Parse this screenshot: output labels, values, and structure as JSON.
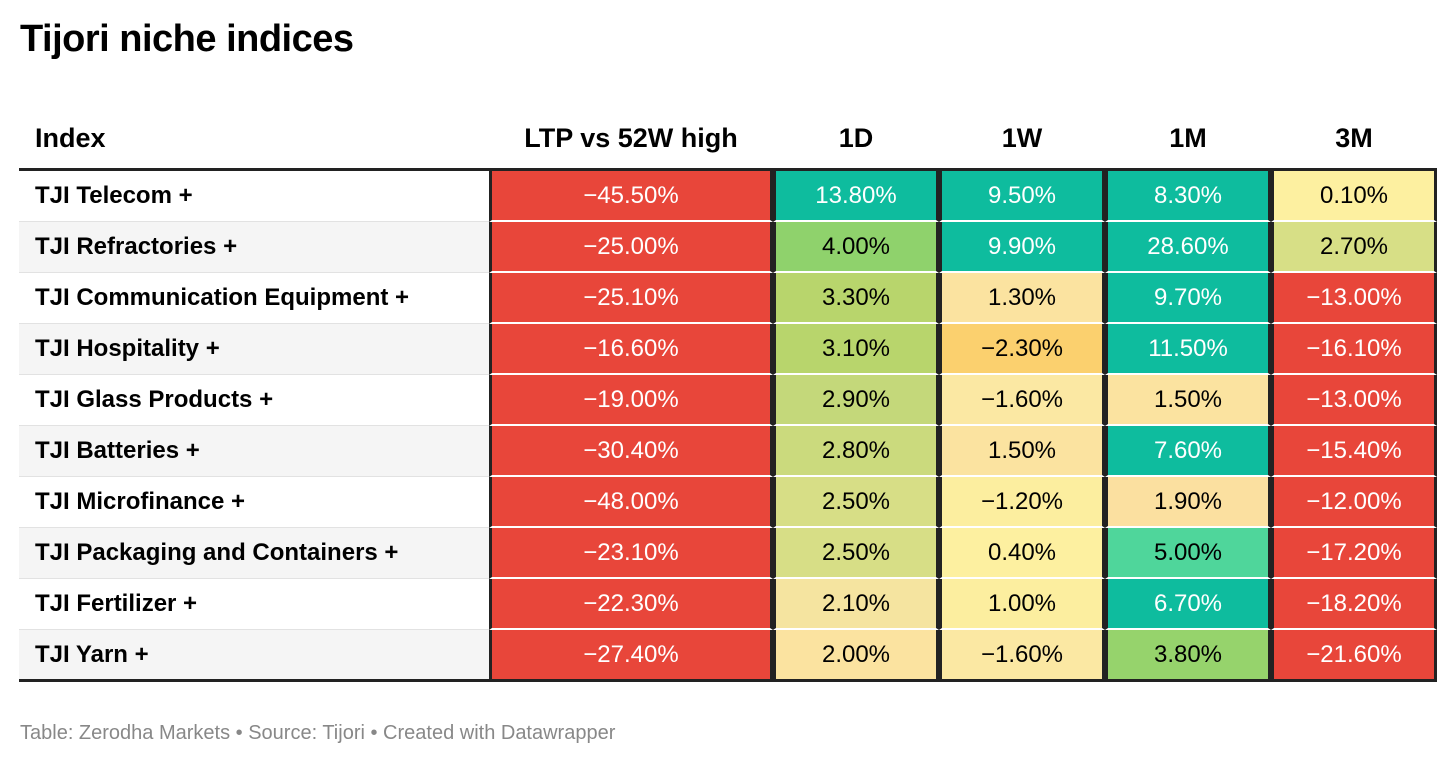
{
  "title": "Tijori niche indices",
  "footer": "Table: Zerodha Markets • Source: Tijori • Created with Datawrapper",
  "chart_data": {
    "type": "table",
    "title": "Tijori niche indices",
    "columns": [
      "Index",
      "LTP vs 52W high",
      "1D",
      "1W",
      "1M",
      "3M"
    ],
    "rows": [
      [
        "TJI Telecom +",
        "−45.50%",
        "13.80%",
        "9.50%",
        "8.30%",
        "0.10%"
      ],
      [
        "TJI Refractories +",
        "−25.00%",
        "4.00%",
        "9.90%",
        "28.60%",
        "2.70%"
      ],
      [
        "TJI Communication Equipment +",
        "−25.10%",
        "3.30%",
        "1.30%",
        "9.70%",
        "−13.00%"
      ],
      [
        "TJI Hospitality +",
        "−16.60%",
        "3.10%",
        "−2.30%",
        "11.50%",
        "−16.10%"
      ],
      [
        "TJI Glass Products +",
        "−19.00%",
        "2.90%",
        "−1.60%",
        "1.50%",
        "−13.00%"
      ],
      [
        "TJI Batteries +",
        "−30.40%",
        "2.80%",
        "1.50%",
        "7.60%",
        "−15.40%"
      ],
      [
        "TJI Microfinance +",
        "−48.00%",
        "2.50%",
        "−1.20%",
        "1.90%",
        "−12.00%"
      ],
      [
        "TJI Packaging and Containers +",
        "−23.10%",
        "2.50%",
        "0.40%",
        "5.00%",
        "−17.20%"
      ],
      [
        "TJI Fertilizer +",
        "−22.30%",
        "2.10%",
        "1.00%",
        "6.70%",
        "−18.20%"
      ],
      [
        "TJI Yarn +",
        "−27.40%",
        "2.00%",
        "−1.60%",
        "3.80%",
        "−21.60%"
      ]
    ],
    "cell_colors": [
      [
        "#e8463a",
        "#0ebc9e",
        "#0ebc9e",
        "#0ebc9e",
        "#fdf0a0"
      ],
      [
        "#e8463a",
        "#8fd26c",
        "#0ebc9e",
        "#0ebc9e",
        "#d7df86"
      ],
      [
        "#e8463a",
        "#b8d56c",
        "#fbe3a0",
        "#0ebc9e",
        "#e8463a"
      ],
      [
        "#e8463a",
        "#b8d56c",
        "#fbd06e",
        "#0ebc9e",
        "#e8463a"
      ],
      [
        "#e8463a",
        "#c4d87a",
        "#fbe8a3",
        "#fbe3a0",
        "#e8463a"
      ],
      [
        "#e8463a",
        "#cbda7d",
        "#fbe3a0",
        "#0ebc9e",
        "#e8463a"
      ],
      [
        "#e8463a",
        "#d7de86",
        "#fcee9f",
        "#fbe0a0",
        "#e8463a"
      ],
      [
        "#e8463a",
        "#d7de86",
        "#fdf0a0",
        "#4fd69b",
        "#e8463a"
      ],
      [
        "#e8463a",
        "#f5e4a0",
        "#fcee9f",
        "#0ebc9e",
        "#e8463a"
      ],
      [
        "#e8463a",
        "#fbe3a0",
        "#fbe8a3",
        "#96d36c",
        "#e8463a"
      ]
    ],
    "light_text_color": "#ffffff",
    "dark_text_color": "#000000"
  }
}
